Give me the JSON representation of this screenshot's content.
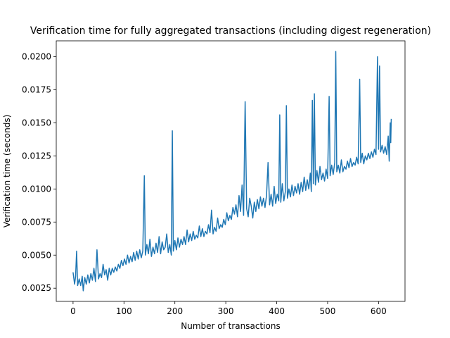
{
  "chart_data": {
    "type": "line",
    "title": "Verification time for fully aggregated transactions (including digest regeneration)",
    "xlabel": "Number of transactions",
    "ylabel": "Verification time (seconds)",
    "xlim": [
      -33,
      652
    ],
    "ylim": [
      0.0015,
      0.0212
    ],
    "xticks": [
      0,
      100,
      200,
      300,
      400,
      500,
      600
    ],
    "yticks": [
      0.0025,
      0.005,
      0.0075,
      0.01,
      0.0125,
      0.015,
      0.0175,
      0.02
    ],
    "xtick_labels": [
      "0",
      "100",
      "200",
      "300",
      "400",
      "500",
      "600"
    ],
    "ytick_labels": [
      "0.0025",
      "0.0050",
      "0.0075",
      "0.0100",
      "0.0125",
      "0.0150",
      "0.0175",
      "0.0200"
    ],
    "grid": false,
    "color": "#1f77b4",
    "series": [
      {
        "points": [
          [
            0,
            0.0037
          ],
          [
            3,
            0.0028
          ],
          [
            5,
            0.0034
          ],
          [
            7,
            0.0053
          ],
          [
            9,
            0.0027
          ],
          [
            12,
            0.0032
          ],
          [
            15,
            0.0027
          ],
          [
            18,
            0.0034
          ],
          [
            20,
            0.0023
          ],
          [
            23,
            0.0033
          ],
          [
            26,
            0.0028
          ],
          [
            29,
            0.0035
          ],
          [
            32,
            0.0029
          ],
          [
            35,
            0.0036
          ],
          [
            38,
            0.0031
          ],
          [
            41,
            0.004
          ],
          [
            44,
            0.003
          ],
          [
            47,
            0.0054
          ],
          [
            50,
            0.0032
          ],
          [
            53,
            0.0036
          ],
          [
            56,
            0.0033
          ],
          [
            59,
            0.0043
          ],
          [
            62,
            0.0035
          ],
          [
            65,
            0.0039
          ],
          [
            68,
            0.0031
          ],
          [
            71,
            0.004
          ],
          [
            74,
            0.0035
          ],
          [
            77,
            0.004
          ],
          [
            80,
            0.0037
          ],
          [
            83,
            0.0041
          ],
          [
            86,
            0.0038
          ],
          [
            89,
            0.0043
          ],
          [
            92,
            0.004
          ],
          [
            95,
            0.0046
          ],
          [
            98,
            0.0042
          ],
          [
            101,
            0.0047
          ],
          [
            104,
            0.0043
          ],
          [
            107,
            0.005
          ],
          [
            110,
            0.0044
          ],
          [
            113,
            0.0049
          ],
          [
            116,
            0.0045
          ],
          [
            119,
            0.0052
          ],
          [
            122,
            0.0046
          ],
          [
            125,
            0.0053
          ],
          [
            128,
            0.0047
          ],
          [
            131,
            0.0054
          ],
          [
            134,
            0.0048
          ],
          [
            137,
            0.0053
          ],
          [
            140,
            0.011
          ],
          [
            142,
            0.005
          ],
          [
            145,
            0.0058
          ],
          [
            148,
            0.0051
          ],
          [
            151,
            0.0062
          ],
          [
            154,
            0.0049
          ],
          [
            157,
            0.0056
          ],
          [
            160,
            0.0051
          ],
          [
            163,
            0.0059
          ],
          [
            166,
            0.0052
          ],
          [
            169,
            0.0064
          ],
          [
            172,
            0.0051
          ],
          [
            175,
            0.006
          ],
          [
            178,
            0.0054
          ],
          [
            181,
            0.0056
          ],
          [
            184,
            0.0066
          ],
          [
            187,
            0.0052
          ],
          [
            190,
            0.0058
          ],
          [
            193,
            0.005
          ],
          [
            195,
            0.0144
          ],
          [
            197,
            0.0053
          ],
          [
            200,
            0.0061
          ],
          [
            203,
            0.0054
          ],
          [
            206,
            0.0063
          ],
          [
            209,
            0.0056
          ],
          [
            212,
            0.0062
          ],
          [
            215,
            0.0058
          ],
          [
            218,
            0.0064
          ],
          [
            221,
            0.0058
          ],
          [
            224,
            0.0069
          ],
          [
            227,
            0.006
          ],
          [
            230,
            0.0066
          ],
          [
            233,
            0.0061
          ],
          [
            236,
            0.0068
          ],
          [
            239,
            0.0062
          ],
          [
            242,
            0.0065
          ],
          [
            245,
            0.0063
          ],
          [
            248,
            0.0072
          ],
          [
            251,
            0.0064
          ],
          [
            254,
            0.007
          ],
          [
            257,
            0.0064
          ],
          [
            260,
            0.0068
          ],
          [
            263,
            0.0066
          ],
          [
            266,
            0.0073
          ],
          [
            269,
            0.0067
          ],
          [
            272,
            0.0084
          ],
          [
            275,
            0.0066
          ],
          [
            278,
            0.0071
          ],
          [
            281,
            0.0068
          ],
          [
            284,
            0.0078
          ],
          [
            287,
            0.007
          ],
          [
            290,
            0.0073
          ],
          [
            293,
            0.0071
          ],
          [
            296,
            0.0077
          ],
          [
            299,
            0.0073
          ],
          [
            302,
            0.0082
          ],
          [
            305,
            0.0076
          ],
          [
            308,
            0.008
          ],
          [
            311,
            0.0077
          ],
          [
            314,
            0.0086
          ],
          [
            317,
            0.0081
          ],
          [
            320,
            0.0088
          ],
          [
            323,
            0.0079
          ],
          [
            326,
            0.0095
          ],
          [
            329,
            0.0083
          ],
          [
            332,
            0.0103
          ],
          [
            335,
            0.008
          ],
          [
            338,
            0.0166
          ],
          [
            341,
            0.0085
          ],
          [
            344,
            0.0079
          ],
          [
            347,
            0.0093
          ],
          [
            350,
            0.0087
          ],
          [
            353,
            0.0078
          ],
          [
            356,
            0.009
          ],
          [
            359,
            0.0083
          ],
          [
            362,
            0.0092
          ],
          [
            365,
            0.0085
          ],
          [
            368,
            0.0094
          ],
          [
            371,
            0.0087
          ],
          [
            374,
            0.0093
          ],
          [
            377,
            0.0086
          ],
          [
            380,
            0.0095
          ],
          [
            383,
            0.012
          ],
          [
            386,
            0.0088
          ],
          [
            389,
            0.0096
          ],
          [
            392,
            0.0087
          ],
          [
            395,
            0.0102
          ],
          [
            398,
            0.0089
          ],
          [
            401,
            0.0096
          ],
          [
            404,
            0.0091
          ],
          [
            406,
            0.0156
          ],
          [
            408,
            0.009
          ],
          [
            411,
            0.0104
          ],
          [
            414,
            0.0091
          ],
          [
            417,
            0.0098
          ],
          [
            419,
            0.0163
          ],
          [
            421,
            0.0093
          ],
          [
            424,
            0.01
          ],
          [
            427,
            0.0094
          ],
          [
            430,
            0.0103
          ],
          [
            433,
            0.0095
          ],
          [
            436,
            0.0102
          ],
          [
            439,
            0.0097
          ],
          [
            442,
            0.0104
          ],
          [
            445,
            0.0096
          ],
          [
            448,
            0.0105
          ],
          [
            451,
            0.0098
          ],
          [
            454,
            0.0109
          ],
          [
            457,
            0.0099
          ],
          [
            460,
            0.0107
          ],
          [
            463,
            0.01
          ],
          [
            466,
            0.0112
          ],
          [
            468,
            0.0098
          ],
          [
            470,
            0.0167
          ],
          [
            472,
            0.0104
          ],
          [
            474,
            0.0172
          ],
          [
            476,
            0.0103
          ],
          [
            479,
            0.0114
          ],
          [
            482,
            0.0105
          ],
          [
            485,
            0.0117
          ],
          [
            488,
            0.0107
          ],
          [
            491,
            0.0112
          ],
          [
            494,
            0.0106
          ],
          [
            497,
            0.0115
          ],
          [
            500,
            0.0108
          ],
          [
            503,
            0.017
          ],
          [
            505,
            0.011
          ],
          [
            508,
            0.0118
          ],
          [
            511,
            0.0111
          ],
          [
            514,
            0.012
          ],
          [
            516,
            0.0204
          ],
          [
            518,
            0.0113
          ],
          [
            521,
            0.0118
          ],
          [
            524,
            0.0112
          ],
          [
            527,
            0.0122
          ],
          [
            530,
            0.0113
          ],
          [
            533,
            0.0117
          ],
          [
            536,
            0.0115
          ],
          [
            539,
            0.0121
          ],
          [
            542,
            0.0116
          ],
          [
            545,
            0.0123
          ],
          [
            548,
            0.0117
          ],
          [
            551,
            0.012
          ],
          [
            554,
            0.0118
          ],
          [
            557,
            0.0124
          ],
          [
            560,
            0.0119
          ],
          [
            563,
            0.0183
          ],
          [
            565,
            0.012
          ],
          [
            568,
            0.0127
          ],
          [
            571,
            0.0119
          ],
          [
            574,
            0.0125
          ],
          [
            577,
            0.0122
          ],
          [
            580,
            0.0127
          ],
          [
            583,
            0.0123
          ],
          [
            586,
            0.0128
          ],
          [
            589,
            0.0124
          ],
          [
            592,
            0.013
          ],
          [
            595,
            0.0126
          ],
          [
            598,
            0.02
          ],
          [
            600,
            0.013
          ],
          [
            602,
            0.0193
          ],
          [
            604,
            0.0128
          ],
          [
            607,
            0.0133
          ],
          [
            610,
            0.0127
          ],
          [
            613,
            0.0132
          ],
          [
            616,
            0.0126
          ],
          [
            619,
            0.014
          ],
          [
            621,
            0.0121
          ],
          [
            623,
            0.015
          ],
          [
            624,
            0.0135
          ],
          [
            625,
            0.0153
          ]
        ]
      }
    ]
  }
}
